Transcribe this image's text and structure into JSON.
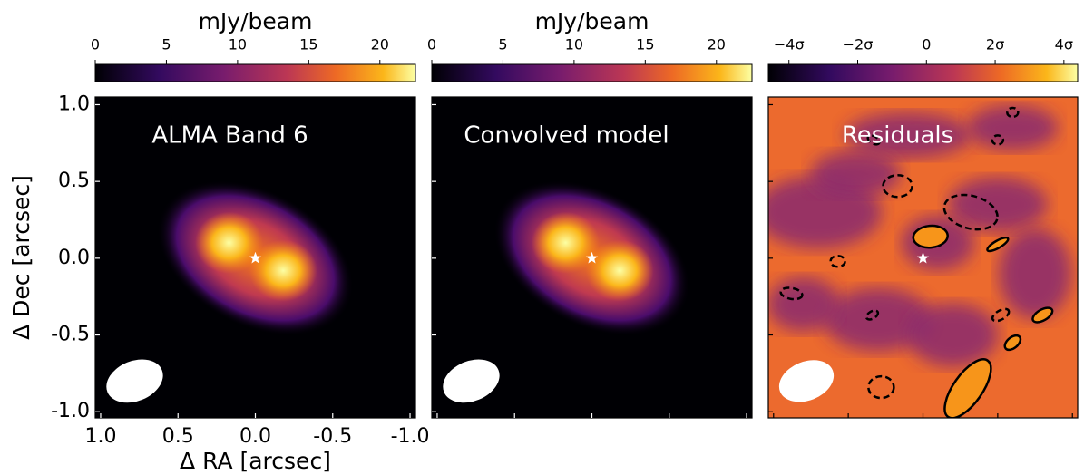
{
  "chart_data": [
    {
      "type": "image",
      "label": "ALMA Band 6",
      "colorbar_label": "mJy/beam",
      "colorbar_lim": [
        0,
        22.5
      ],
      "colorbar_ticks": [
        0,
        5,
        10,
        15,
        20
      ],
      "xlabel": "Δ RA [arcsec]",
      "ylabel": "Δ Dec [arcsec]",
      "xlim": [
        1.035,
        -1.035
      ],
      "ylim": [
        -1.04,
        1.05
      ],
      "xticks": [
        {
          "value": 1,
          "label": "1.0"
        },
        0.5,
        {
          "value": 0,
          "label": "0.0"
        },
        -0.5,
        {
          "value": -1,
          "label": "-1.0"
        }
      ],
      "yticks": [
        {
          "value": 1,
          "label": "1.0"
        },
        0.5,
        {
          "value": 0,
          "label": "0.0"
        },
        -0.5,
        {
          "value": -1,
          "label": "-1.0"
        }
      ]
    },
    {
      "type": "image",
      "label": "Convolved model",
      "colorbar_label": "mJy/beam",
      "colorbar_lim": [
        0,
        22.5
      ],
      "colorbar_ticks": [
        0,
        5,
        10,
        15,
        20
      ],
      "xlim": [
        1.035,
        -1.035
      ],
      "ylim": [
        -1.04,
        1.05
      ],
      "xticks": [
        1,
        0.5,
        0,
        -0.5,
        -1
      ],
      "yticks": [
        1,
        0.5,
        0,
        -0.5,
        -1
      ]
    },
    {
      "type": "residual",
      "label": "Residuals",
      "colorbar_lim": [
        -4.6,
        4.4
      ],
      "colorbar_ticks": [
        {
          "value": -4,
          "label": "−4σ"
        },
        {
          "value": -2,
          "label": "−2σ"
        },
        0,
        {
          "value": 2,
          "label": "2σ"
        },
        {
          "value": 4,
          "label": "4σ"
        }
      ],
      "xlim": [
        1.035,
        -1.035
      ],
      "ylim": [
        -1.04,
        1.05
      ],
      "xticks": [
        1,
        0.5,
        0,
        -0.5,
        -1
      ],
      "yticks": [
        1,
        0.5,
        0,
        -0.5,
        -1
      ]
    }
  ]
}
